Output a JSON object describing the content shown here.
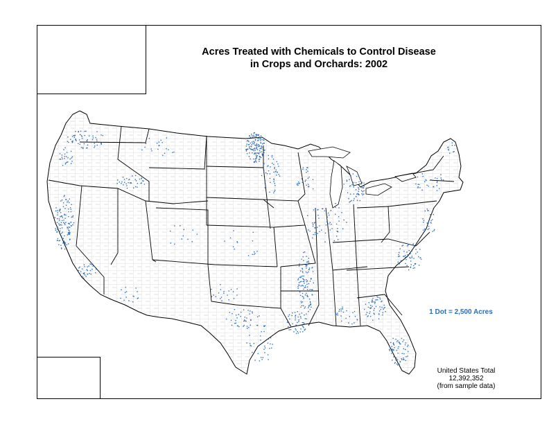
{
  "map": {
    "title_line1": "Acres Treated with Chemicals to Control Disease",
    "title_line2": "in Crops and Orchards:  2002",
    "legend": "1 Dot = 2,500 Acres",
    "total_label": "United States Total",
    "total_value": "12,392,352",
    "total_note": "(from sample data)",
    "dot_color": "#2a6ebb",
    "line_color": "#000000",
    "county_color": "#9a9a9a",
    "dot_clusters": [
      {
        "region": "Washington",
        "weight": 60
      },
      {
        "region": "Oregon Willamette",
        "weight": 25
      },
      {
        "region": "Idaho Snake River",
        "weight": 35
      },
      {
        "region": "California Central Valley",
        "weight": 120
      },
      {
        "region": "Southern California",
        "weight": 30
      },
      {
        "region": "Arizona",
        "weight": 15
      },
      {
        "region": "Colorado",
        "weight": 12
      },
      {
        "region": "Montana",
        "weight": 20
      },
      {
        "region": "North Dakota Red River",
        "weight": 140
      },
      {
        "region": "Minnesota",
        "weight": 45
      },
      {
        "region": "Wisconsin",
        "weight": 25
      },
      {
        "region": "Michigan",
        "weight": 50
      },
      {
        "region": "Illinois Indiana Ohio",
        "weight": 60
      },
      {
        "region": "Mississippi Delta",
        "weight": 110
      },
      {
        "region": "Louisiana",
        "weight": 50
      },
      {
        "region": "Texas East",
        "weight": 40
      },
      {
        "region": "Texas Coast",
        "weight": 35
      },
      {
        "region": "Oklahoma",
        "weight": 20
      },
      {
        "region": "Georgia",
        "weight": 55
      },
      {
        "region": "Carolinas Virginia",
        "weight": 55
      },
      {
        "region": "Florida",
        "weight": 60
      },
      {
        "region": "Mid Atlantic",
        "weight": 25
      },
      {
        "region": "New York New England",
        "weight": 30
      },
      {
        "region": "Maine",
        "weight": 10
      },
      {
        "region": "Alabama",
        "weight": 25
      },
      {
        "region": "Kansas Nebraska",
        "weight": 15
      }
    ]
  }
}
